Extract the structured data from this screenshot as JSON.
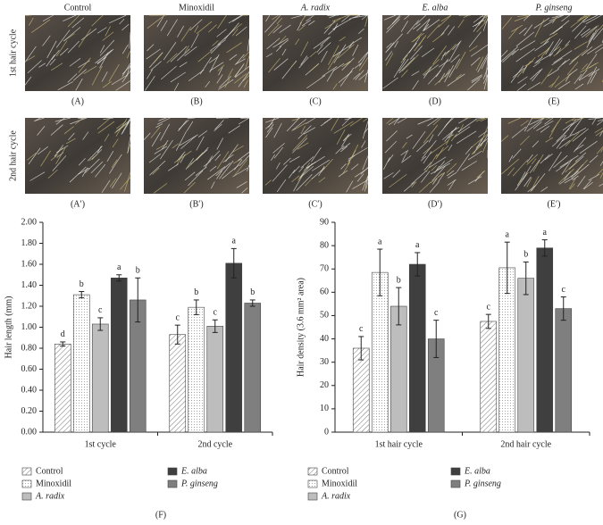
{
  "photos": {
    "columns": [
      "Control",
      "Minoxidil",
      "A. radix",
      "E. alba",
      "P. ginseng"
    ],
    "rows": [
      "1st hair cycle",
      "2nd hair cycle"
    ],
    "labels": [
      [
        "(A)",
        "(B)",
        "(C)",
        "(D)",
        "(E)"
      ],
      [
        "(A′)",
        "(B′)",
        "(C′)",
        "(D′)",
        "(E′)"
      ]
    ]
  },
  "chart_data": [
    {
      "type": "bar",
      "panel": "(F)",
      "y_label": "Hair length (mm)",
      "categories": [
        "1st cycle",
        "2nd cycle"
      ],
      "ylim": [
        0,
        2
      ],
      "yticks": [
        {
          "value": 0,
          "label": "0.00"
        },
        {
          "value": 0.2,
          "label": "0.20"
        },
        {
          "value": 0.4,
          "label": "0.40"
        },
        {
          "value": 0.6,
          "label": "0.60"
        },
        {
          "value": 0.8,
          "label": "0.80"
        },
        {
          "value": 1,
          "label": "1.00"
        },
        {
          "value": 1.2,
          "label": "1.20"
        },
        {
          "value": 1.4,
          "label": "1.40"
        },
        {
          "value": 1.6,
          "label": "1.60"
        },
        {
          "value": 1.8,
          "label": "1.80"
        },
        {
          "value": 2,
          "label": "2.00"
        }
      ],
      "series": [
        {
          "name": "Control",
          "color": "#ffffff",
          "pattern": "hatch",
          "values": [
            0.84,
            0.93
          ],
          "errors": [
            0.02,
            0.09
          ],
          "letters": [
            "d",
            "c"
          ]
        },
        {
          "name": "Minoxidil",
          "color": "#ffffff",
          "pattern": "dots",
          "values": [
            1.31,
            1.19
          ],
          "errors": [
            0.03,
            0.07
          ],
          "letters": [
            "b",
            "b"
          ]
        },
        {
          "name": "A. radix",
          "color": "#bdbdbd",
          "values": [
            1.03,
            1.01
          ],
          "errors": [
            0.06,
            0.06
          ],
          "letters": [
            "c",
            "c"
          ]
        },
        {
          "name": "E. alba",
          "color": "#3f3f3f",
          "values": [
            1.47,
            1.61
          ],
          "errors": [
            0.03,
            0.14
          ],
          "letters": [
            "a",
            "a"
          ]
        },
        {
          "name": "P. ginseng",
          "color": "#7f7f7f",
          "values": [
            1.26,
            1.23
          ],
          "errors": [
            0.21,
            0.03
          ],
          "letters": [
            "b",
            "b"
          ]
        }
      ]
    },
    {
      "type": "bar",
      "panel": "(G)",
      "y_label": "Hair density (3.6 mm² area)",
      "categories": [
        "1st hair cycle",
        "2nd hair cycle"
      ],
      "ylim": [
        0,
        90
      ],
      "yticks": [
        0,
        10,
        20,
        30,
        40,
        50,
        60,
        70,
        80,
        90
      ],
      "series": [
        {
          "name": "Control",
          "color": "#ffffff",
          "pattern": "hatch",
          "values": [
            36,
            47.5
          ],
          "errors": [
            5,
            3
          ],
          "letters": [
            "c",
            "c"
          ]
        },
        {
          "name": "Minoxidil",
          "color": "#ffffff",
          "pattern": "dots",
          "values": [
            68.5,
            70.5
          ],
          "errors": [
            10,
            11
          ],
          "letters": [
            "a",
            "a"
          ]
        },
        {
          "name": "A. radix",
          "color": "#bdbdbd",
          "values": [
            54,
            66
          ],
          "errors": [
            8,
            7
          ],
          "letters": [
            "b",
            "b"
          ]
        },
        {
          "name": "E. alba",
          "color": "#3f3f3f",
          "values": [
            72,
            79
          ],
          "errors": [
            5,
            3.5
          ],
          "letters": [
            "a",
            "a"
          ]
        },
        {
          "name": "P. ginseng",
          "color": "#7f7f7f",
          "values": [
            40,
            53
          ],
          "errors": [
            8,
            5
          ],
          "letters": [
            "c",
            "c"
          ]
        }
      ]
    }
  ]
}
